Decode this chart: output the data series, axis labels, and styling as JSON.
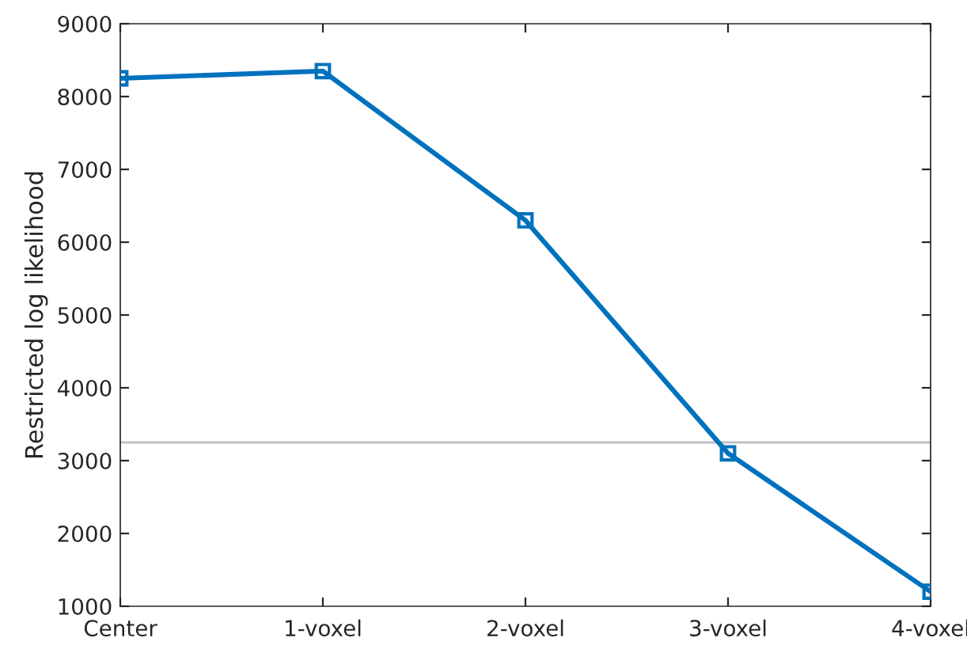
{
  "chart_data": {
    "type": "line",
    "ylabel": "Restricted log likelihood",
    "categories": [
      "Center",
      "1-voxel",
      "2-voxel",
      "3-voxel",
      "4-voxel"
    ],
    "series": [
      {
        "color": "#0072bd",
        "values": [
          8250,
          8350,
          6300,
          3100,
          1200
        ]
      }
    ],
    "ylim": [
      1000,
      9000
    ],
    "yticks": [
      1000,
      2000,
      3000,
      4000,
      5000,
      6000,
      7000,
      8000,
      9000
    ],
    "ref_lines": [
      {
        "axis": "y",
        "value": 3250,
        "color": "#bfbfbf"
      }
    ],
    "marker": "square",
    "grid": false,
    "legend": false
  }
}
